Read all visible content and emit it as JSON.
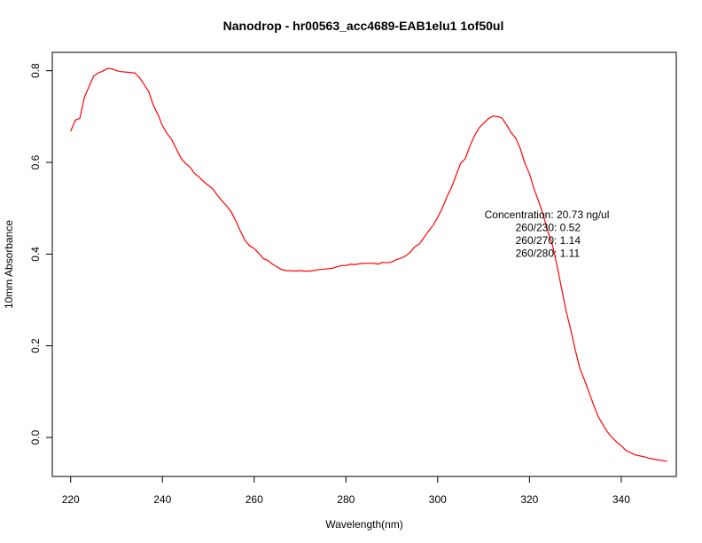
{
  "chart_data": {
    "type": "line",
    "title": "Nanodrop - hr00563_acc4689-EAB1elu1 1of50ul",
    "xlabel": "Wavelength(nm)",
    "ylabel": "10mm Absorbance",
    "xlim": [
      216,
      352
    ],
    "ylim": [
      -0.085,
      0.84
    ],
    "x_ticks": [
      220,
      240,
      260,
      280,
      300,
      320,
      340
    ],
    "x_tick_labels": [
      "220",
      "240",
      "260",
      "280",
      "300",
      "320",
      "340"
    ],
    "y_ticks": [
      0.0,
      0.2,
      0.4,
      0.6,
      0.8
    ],
    "y_tick_labels": [
      "0.0",
      "0.2",
      "0.4",
      "0.6",
      "0.8"
    ],
    "grid": false,
    "series": [
      {
        "color": "#ff0000",
        "x": [
          220,
          221,
          222,
          223,
          224,
          225,
          226,
          227,
          228,
          229,
          230,
          231,
          232,
          233,
          234,
          235,
          236,
          237,
          238,
          239,
          240,
          241,
          242,
          243,
          244,
          245,
          246,
          247,
          248,
          249,
          250,
          251,
          252,
          253,
          254,
          255,
          256,
          257,
          258,
          259,
          260,
          261,
          262,
          263,
          264,
          265,
          266,
          267,
          268,
          269,
          270,
          271,
          272,
          273,
          274,
          275,
          276,
          277,
          278,
          279,
          280,
          281,
          282,
          283,
          284,
          285,
          286,
          287,
          288,
          289,
          290,
          291,
          292,
          293,
          294,
          295,
          296,
          297,
          298,
          299,
          300,
          301,
          302,
          303,
          304,
          305,
          306,
          307,
          308,
          309,
          310,
          311,
          312,
          313,
          314,
          315,
          316,
          317,
          318,
          319,
          320,
          321,
          322,
          323,
          324,
          325,
          326,
          327,
          328,
          329,
          330,
          331,
          332,
          333,
          334,
          335,
          336,
          337,
          338,
          339,
          340,
          341,
          342,
          343,
          344,
          345,
          346,
          347,
          348,
          349,
          350
        ],
        "y": [
          0.668,
          0.692,
          0.696,
          0.742,
          0.765,
          0.788,
          0.795,
          0.799,
          0.805,
          0.804,
          0.8,
          0.798,
          0.797,
          0.796,
          0.795,
          0.785,
          0.77,
          0.755,
          0.725,
          0.705,
          0.68,
          0.663,
          0.65,
          0.63,
          0.61,
          0.598,
          0.59,
          0.576,
          0.568,
          0.558,
          0.55,
          0.542,
          0.528,
          0.516,
          0.505,
          0.492,
          0.472,
          0.45,
          0.43,
          0.418,
          0.412,
          0.402,
          0.39,
          0.386,
          0.378,
          0.372,
          0.366,
          0.364,
          0.364,
          0.363,
          0.364,
          0.363,
          0.363,
          0.364,
          0.366,
          0.367,
          0.368,
          0.369,
          0.372,
          0.375,
          0.375,
          0.378,
          0.377,
          0.379,
          0.38,
          0.38,
          0.38,
          0.378,
          0.382,
          0.381,
          0.383,
          0.388,
          0.391,
          0.396,
          0.404,
          0.416,
          0.422,
          0.436,
          0.45,
          0.463,
          0.48,
          0.5,
          0.525,
          0.545,
          0.572,
          0.598,
          0.608,
          0.635,
          0.658,
          0.675,
          0.685,
          0.695,
          0.701,
          0.7,
          0.697,
          0.682,
          0.665,
          0.653,
          0.63,
          0.598,
          0.575,
          0.542,
          0.515,
          0.485,
          0.45,
          0.42,
          0.375,
          0.325,
          0.275,
          0.235,
          0.19,
          0.15,
          0.125,
          0.098,
          0.07,
          0.045,
          0.028,
          0.012,
          0.0,
          -0.01,
          -0.018,
          -0.028,
          -0.033,
          -0.038,
          -0.04,
          -0.042,
          -0.045,
          -0.047,
          -0.049,
          -0.05,
          -0.052
        ]
      }
    ],
    "annotations": [
      "Concentration: 20.73 ng/ul",
      "260/230: 0.52",
      "260/270: 1.14",
      "260/280: 1.11"
    ]
  }
}
